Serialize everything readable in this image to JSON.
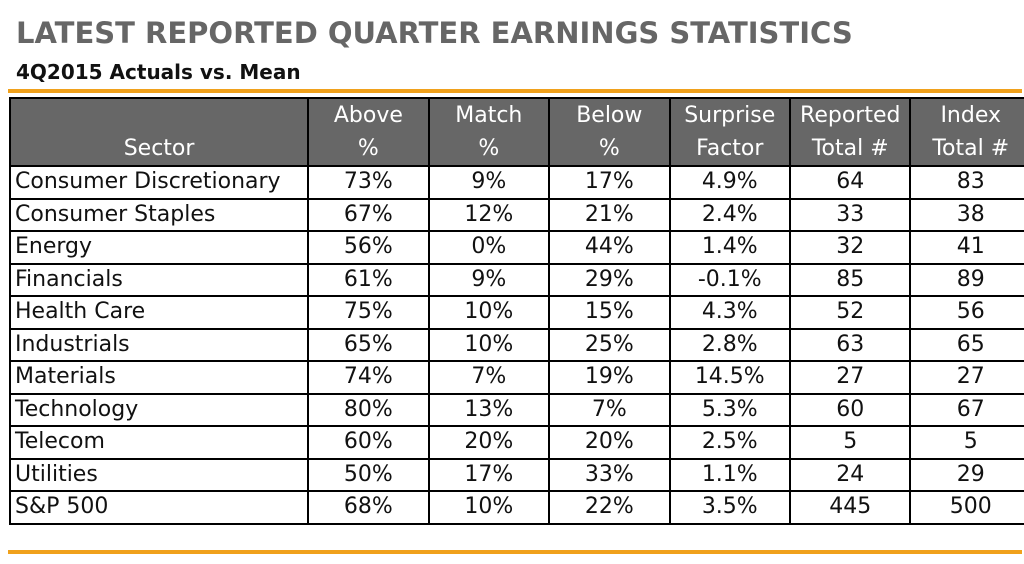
{
  "title": "LATEST REPORTED QUARTER EARNINGS STATISTICS",
  "subtitle": "4Q2015 Actuals vs. Mean",
  "colors": {
    "accent": "#f0a11c",
    "header_bg": "#676767",
    "title": "#666666"
  },
  "table": {
    "headers": [
      {
        "line1": "",
        "line2": "Sector"
      },
      {
        "line1": "Above",
        "line2": "%"
      },
      {
        "line1": "Match",
        "line2": "%"
      },
      {
        "line1": "Below",
        "line2": "%"
      },
      {
        "line1": "Surprise",
        "line2": "Factor"
      },
      {
        "line1": "Reported",
        "line2": "Total #"
      },
      {
        "line1": "Index",
        "line2": "Total #"
      }
    ],
    "rows": [
      [
        "Consumer Discretionary",
        "73%",
        "9%",
        "17%",
        "4.9%",
        "64",
        "83"
      ],
      [
        "Consumer Staples",
        "67%",
        "12%",
        "21%",
        "2.4%",
        "33",
        "38"
      ],
      [
        "Energy",
        "56%",
        "0%",
        "44%",
        "1.4%",
        "32",
        "41"
      ],
      [
        "Financials",
        "61%",
        "9%",
        "29%",
        "-0.1%",
        "85",
        "89"
      ],
      [
        "Health Care",
        "75%",
        "10%",
        "15%",
        "4.3%",
        "52",
        "56"
      ],
      [
        "Industrials",
        "65%",
        "10%",
        "25%",
        "2.8%",
        "63",
        "65"
      ],
      [
        "Materials",
        "74%",
        "7%",
        "19%",
        "14.5%",
        "27",
        "27"
      ],
      [
        "Technology",
        "80%",
        "13%",
        "7%",
        "5.3%",
        "60",
        "67"
      ],
      [
        "Telecom",
        "60%",
        "20%",
        "20%",
        "2.5%",
        "5",
        "5"
      ],
      [
        "Utilities",
        "50%",
        "17%",
        "33%",
        "1.1%",
        "24",
        "29"
      ],
      [
        "S&P 500",
        "68%",
        "10%",
        "22%",
        "3.5%",
        "445",
        "500"
      ]
    ]
  }
}
